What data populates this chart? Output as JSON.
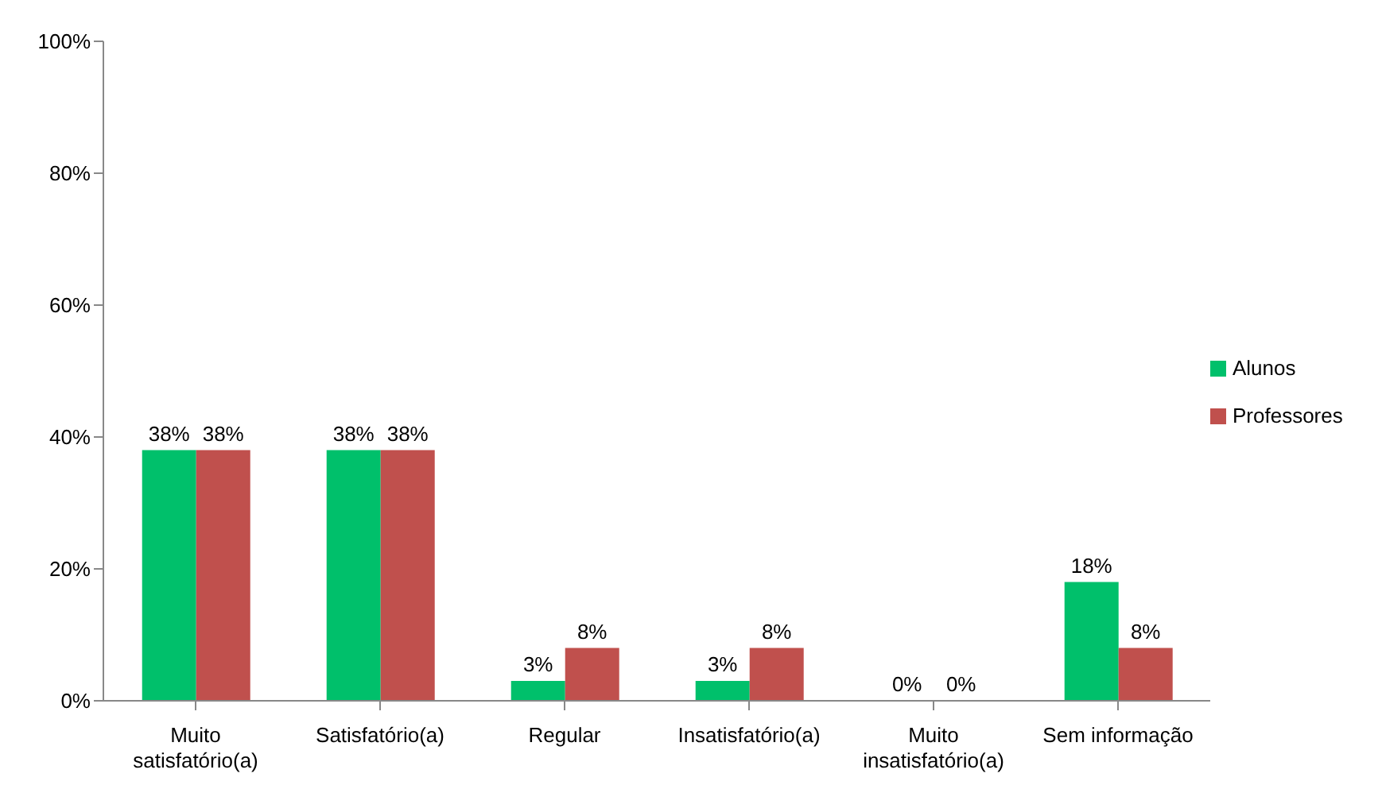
{
  "chart_data": {
    "type": "bar",
    "categories": [
      "Muito satisfatório(a)",
      "Satisfatório(a)",
      "Regular",
      "Insatisfatório(a)",
      "Muito insatisfatório(a)",
      "Sem informação"
    ],
    "series": [
      {
        "name": "Alunos",
        "color": "#00c06b",
        "values": [
          38,
          38,
          3,
          3,
          0,
          18
        ],
        "value_labels": [
          "38%",
          "38%",
          "3%",
          "3%",
          "0%",
          "18%"
        ]
      },
      {
        "name": "Professores",
        "color": "#c0504d",
        "values": [
          38,
          38,
          8,
          8,
          0,
          8
        ],
        "value_labels": [
          "38%",
          "38%",
          "8%",
          "8%",
          "0%",
          "8%"
        ]
      }
    ],
    "ylim": [
      0,
      100
    ],
    "yticks": [
      {
        "value": 0,
        "label": "0%"
      },
      {
        "value": 20,
        "label": "20%"
      },
      {
        "value": 40,
        "label": "40%"
      },
      {
        "value": 60,
        "label": "60%"
      },
      {
        "value": 80,
        "label": "80%"
      },
      {
        "value": 100,
        "label": "100%"
      }
    ],
    "grid": false,
    "legend": "right"
  }
}
